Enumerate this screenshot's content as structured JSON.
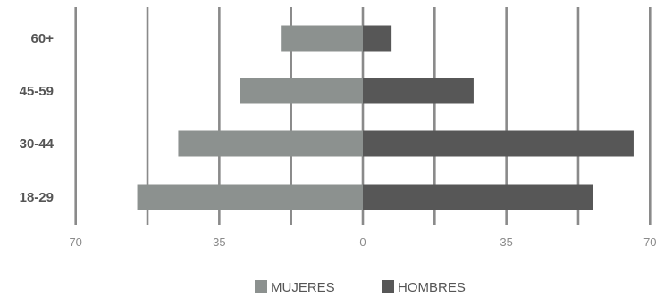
{
  "chart_data": {
    "type": "bar",
    "orientation": "horizontal",
    "layout": "diverging",
    "categories": [
      "60+",
      "45-59",
      "30-44",
      "18-29"
    ],
    "series": [
      {
        "name": "MUJERES",
        "side": "left",
        "color": "#8c918f",
        "values": [
          20,
          30,
          45,
          55
        ]
      },
      {
        "name": "HOMBRES",
        "side": "right",
        "color": "#575757",
        "values": [
          7,
          27,
          66,
          56
        ]
      }
    ],
    "xlim": [
      -70,
      70
    ],
    "xticks": [
      -70,
      -35,
      0,
      35,
      70
    ],
    "xtick_labels": [
      "70",
      "35",
      "0",
      "35",
      "70"
    ],
    "grid": true,
    "grid_color": "#8a8a8a",
    "legend": "bottom-center",
    "title": "",
    "xlabel": "",
    "ylabel": ""
  }
}
